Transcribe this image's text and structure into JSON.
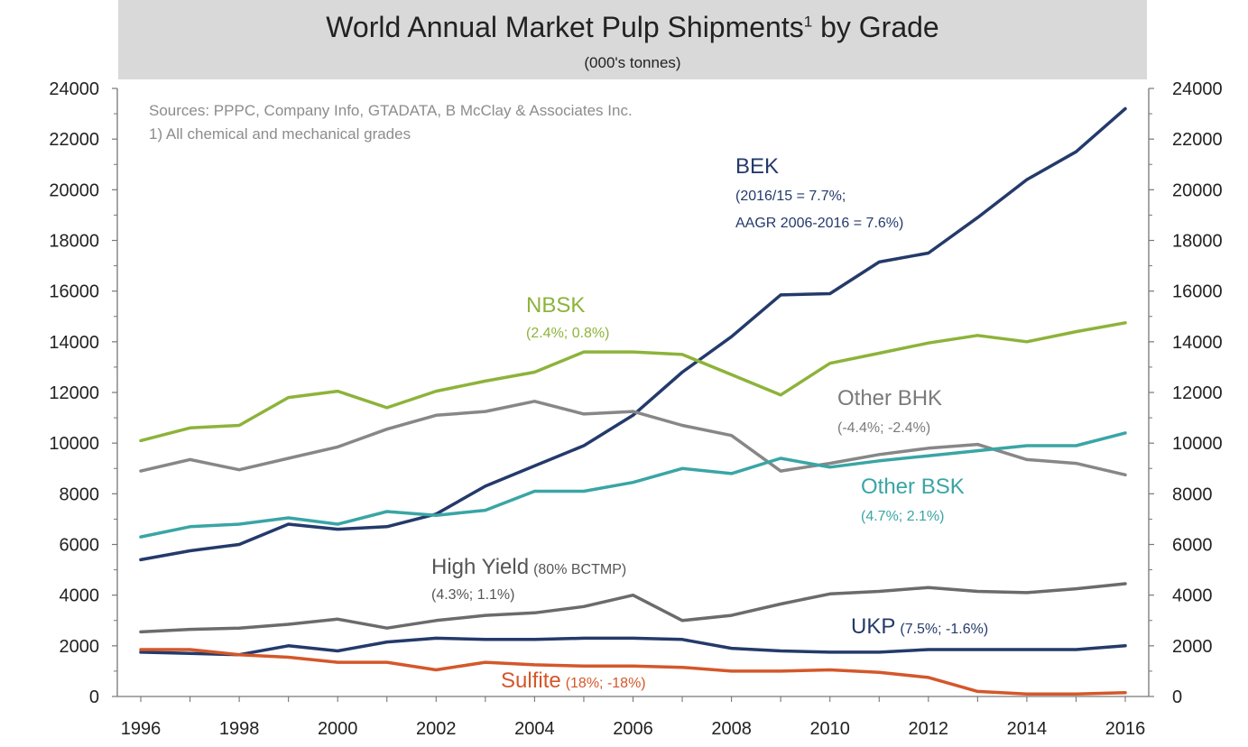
{
  "chart_data": {
    "type": "line",
    "title": "World Annual Market Pulp Shipments",
    "title_sup": "1",
    "title_tail": " by Grade",
    "subtitle": "(000's tonnes)",
    "notes": [
      "Sources: PPPC,  Company Info, GTADATA, B McClay & Associates Inc.",
      "1) All chemical and mechanical grades"
    ],
    "ylim": [
      0,
      24000
    ],
    "yticks": [
      "0",
      "2000",
      "4000",
      "6000",
      "8000",
      "10000",
      "12000",
      "14000",
      "16000",
      "18000",
      "20000",
      "22000",
      "24000"
    ],
    "x": [
      1996,
      1997,
      1998,
      1999,
      2000,
      2001,
      2002,
      2003,
      2004,
      2005,
      2006,
      2007,
      2008,
      2009,
      2010,
      2011,
      2012,
      2013,
      2014,
      2015,
      2016
    ],
    "xticks": [
      "1996",
      "1998",
      "2000",
      "2002",
      "2004",
      "2006",
      "2008",
      "2010",
      "2012",
      "2014",
      "2016"
    ],
    "series": [
      {
        "name": "BEK",
        "color": "#243a6b",
        "values": [
          5400,
          5750,
          6000,
          6800,
          6600,
          6700,
          7200,
          8300,
          9100,
          9900,
          11100,
          12800,
          14200,
          15850,
          15900,
          17150,
          17500,
          18900,
          20400,
          21500,
          23200
        ]
      },
      {
        "name": "NBSK",
        "color": "#8db33a",
        "values": [
          10100,
          10600,
          10700,
          11800,
          12050,
          11400,
          12050,
          12450,
          12800,
          13600,
          13600,
          13500,
          12700,
          11900,
          13150,
          13550,
          13950,
          14250,
          14000,
          14400,
          14750
        ]
      },
      {
        "name": "Other BHK",
        "color": "#878787",
        "values": [
          8900,
          9350,
          8950,
          9400,
          9850,
          10550,
          11100,
          11250,
          11650,
          11150,
          11250,
          10700,
          10300,
          8900,
          9200,
          9550,
          9800,
          9950,
          9350,
          9200,
          8750
        ]
      },
      {
        "name": "Other BSK",
        "color": "#3aa5a5",
        "values": [
          6300,
          6700,
          6800,
          7050,
          6800,
          7300,
          7150,
          7350,
          8100,
          8100,
          8450,
          9000,
          8800,
          9400,
          9050,
          9300,
          9500,
          9700,
          9900,
          9900,
          10400
        ]
      },
      {
        "name": "High Yield",
        "color": "#6b6b6b",
        "values": [
          2550,
          2650,
          2700,
          2850,
          3050,
          2700,
          3000,
          3200,
          3300,
          3550,
          4000,
          3000,
          3200,
          3650,
          4050,
          4150,
          4300,
          4150,
          4100,
          4250,
          4450
        ]
      },
      {
        "name": "UKP",
        "color": "#243a6b",
        "values": [
          1750,
          1700,
          1650,
          2000,
          1800,
          2150,
          2300,
          2250,
          2250,
          2300,
          2300,
          2250,
          1900,
          1800,
          1750,
          1750,
          1850,
          1850,
          1850,
          1850,
          2000
        ]
      },
      {
        "name": "Sulfite",
        "color": "#d4572a",
        "values": [
          1850,
          1850,
          1650,
          1550,
          1350,
          1350,
          1050,
          1350,
          1250,
          1200,
          1200,
          1150,
          1000,
          1000,
          1050,
          950,
          750,
          200,
          100,
          100,
          150
        ]
      }
    ],
    "annotations": [
      {
        "id": "bek",
        "title": "BEK",
        "lines": [
          "(2016/15 = 7.7%;",
          "AAGR 2006-2016 = 7.6%)"
        ],
        "color": "#243a6b"
      },
      {
        "id": "nbsk",
        "title": "NBSK",
        "lines": [
          "(2.4%; 0.8%)"
        ],
        "color": "#8db33a"
      },
      {
        "id": "obhk",
        "title": "Other BHK",
        "lines": [
          "(-4.4%; -2.4%)"
        ],
        "color": "#7a7a7a"
      },
      {
        "id": "obsk",
        "title": "Other BSK",
        "lines": [
          "(4.7%; 2.1%)"
        ],
        "color": "#3aa5a5"
      },
      {
        "id": "hy",
        "title": "High Yield",
        "suffix": "(80% BCTMP)",
        "lines": [
          "(4.3%; 1.1%)"
        ],
        "color": "#555555"
      },
      {
        "id": "ukp",
        "title": "UKP",
        "suffix": "(7.5%; -1.6%)",
        "lines": [],
        "color": "#243a6b"
      },
      {
        "id": "sulfite",
        "title": "Sulfite",
        "suffix": "(18%; -18%)",
        "lines": [],
        "color": "#d4572a"
      }
    ],
    "grid": false,
    "legend": "none"
  }
}
